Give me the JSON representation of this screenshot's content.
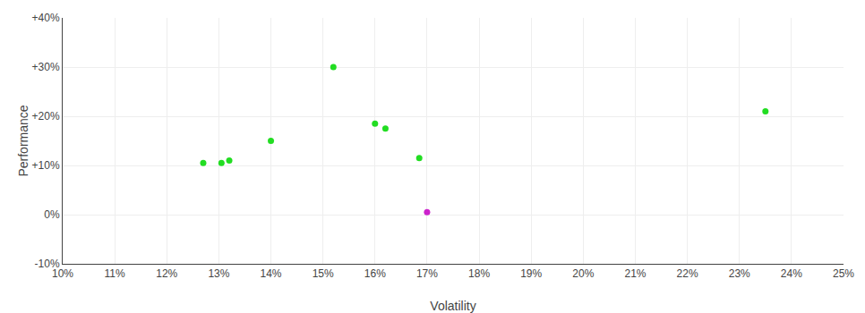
{
  "chart_data": {
    "type": "scatter",
    "xlabel": "Volatility",
    "ylabel": "Performance",
    "series": [
      {
        "color": "#22dd22",
        "x": [
          12.7,
          13.05,
          13.2,
          14.0,
          15.2,
          16.0,
          16.2,
          16.85,
          23.5
        ],
        "values": [
          10.5,
          10.5,
          11.0,
          15.0,
          30.0,
          18.5,
          17.5,
          11.5,
          21.0
        ]
      },
      {
        "color": "#cc22cc",
        "x": [
          17.0
        ],
        "values": [
          0.5
        ]
      }
    ],
    "xlim": [
      10.0,
      25.0
    ],
    "ylim": [
      -10.0,
      40.0
    ],
    "xticks": [
      {
        "value": 10,
        "label": "10%"
      },
      {
        "value": 11,
        "label": "11%"
      },
      {
        "value": 12,
        "label": "12%"
      },
      {
        "value": 13,
        "label": "13%"
      },
      {
        "value": 14,
        "label": "14%"
      },
      {
        "value": 15,
        "label": "15%"
      },
      {
        "value": 16,
        "label": "16%"
      },
      {
        "value": 17,
        "label": "17%"
      },
      {
        "value": 18,
        "label": "18%"
      },
      {
        "value": 19,
        "label": "19%"
      },
      {
        "value": 20,
        "label": "20%"
      },
      {
        "value": 21,
        "label": "21%"
      },
      {
        "value": 22,
        "label": "22%"
      },
      {
        "value": 23,
        "label": "23%"
      },
      {
        "value": 24,
        "label": "24%"
      },
      {
        "value": 25,
        "label": "25%"
      }
    ],
    "yticks": [
      {
        "value": -10,
        "label": "-10%"
      },
      {
        "value": 0,
        "label": "0%"
      },
      {
        "value": 10,
        "label": "+10%"
      },
      {
        "value": 20,
        "label": "+20%"
      },
      {
        "value": 30,
        "label": "+30%"
      },
      {
        "value": 40,
        "label": "+40%"
      }
    ],
    "grid": true
  }
}
